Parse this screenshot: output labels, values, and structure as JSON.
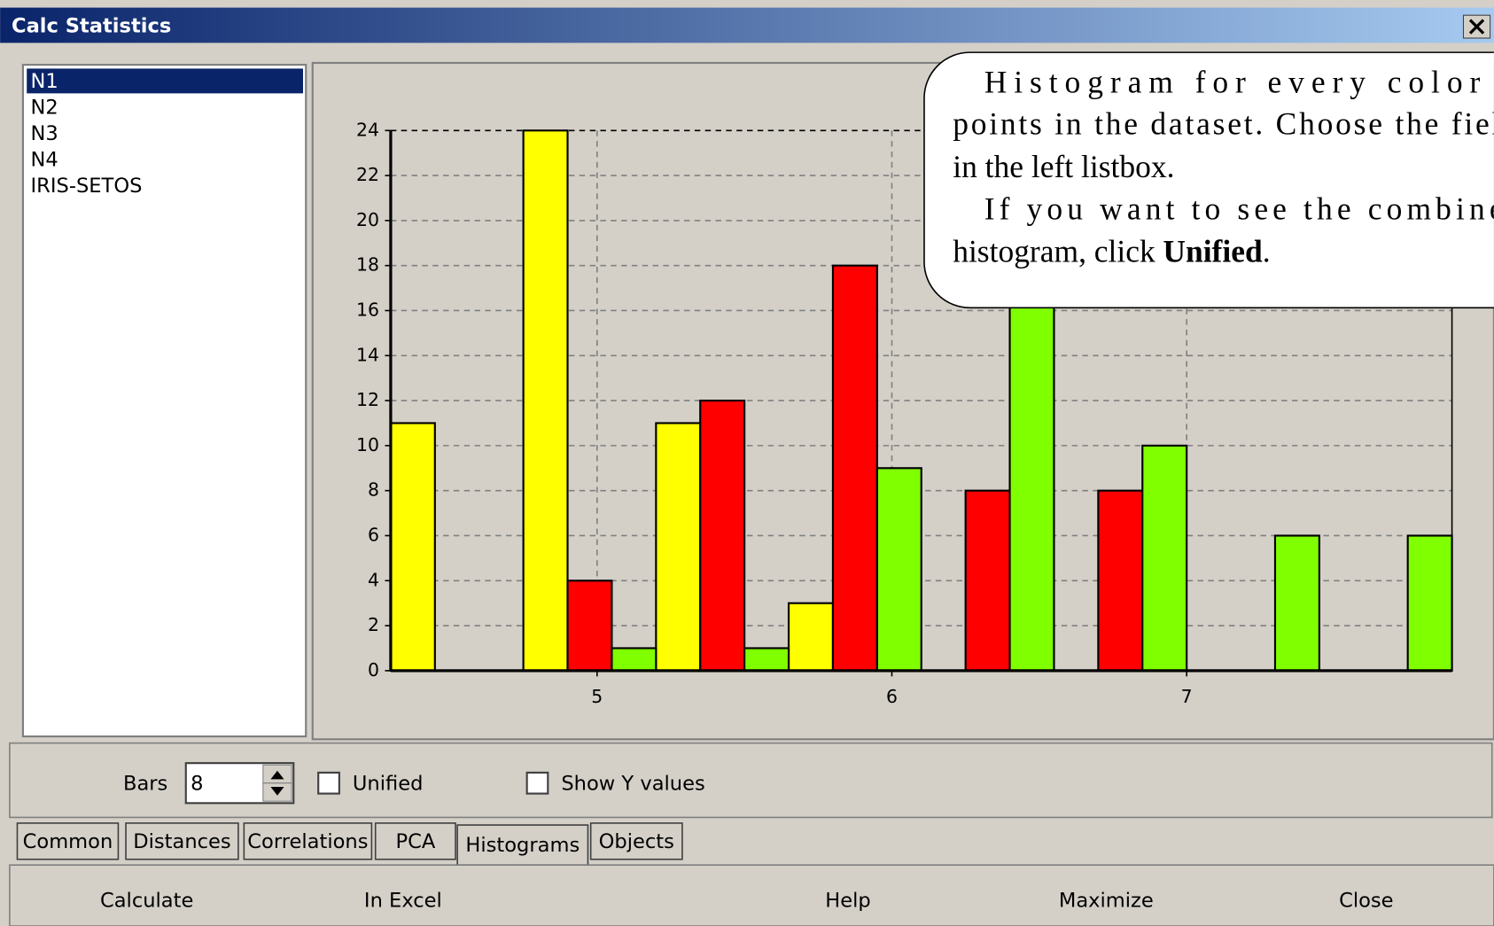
{
  "window": {
    "title": "Calc Statistics"
  },
  "listbox": {
    "items": [
      "N1",
      "N2",
      "N3",
      "N4",
      "IRIS-SETOS"
    ]
  },
  "chart_data": {
    "type": "histogram",
    "bins": [
      4.3,
      4.75,
      5.2,
      5.65,
      6.1,
      6.55,
      7.0,
      7.45,
      7.9
    ],
    "series": [
      {
        "color": "#ffff00",
        "values": [
          11,
          24,
          11,
          3,
          0,
          0,
          0,
          0
        ]
      },
      {
        "color": "#ff0000",
        "values": [
          0,
          4,
          12,
          18,
          8,
          8,
          0,
          0
        ]
      },
      {
        "color": "#80ff00",
        "values": [
          0,
          1,
          1,
          9,
          17,
          10,
          6,
          6
        ]
      }
    ],
    "xlim": [
      4.3,
      7.9
    ],
    "xticks": [
      5,
      6,
      7
    ],
    "ylim": [
      0,
      24
    ],
    "yticks": [
      0,
      2,
      4,
      6,
      8,
      10,
      12,
      14,
      16,
      18,
      20,
      22,
      24
    ],
    "grid": true
  },
  "controls": {
    "bars_label": "Bars",
    "bars_value": "8",
    "unified": "Unified",
    "show_y": "Show Y values"
  },
  "tabs": [
    "Common",
    "Distances",
    "Correlations",
    "PCA",
    "Histograms",
    "Objects"
  ],
  "buttons": [
    "Calculate",
    "In Excel",
    "Help",
    "Maximize",
    "Close"
  ],
  "callout": {
    "lines": [
      "Histogram for every color o",
      "points in the dataset. Choose the fiel",
      "in the left listbox.",
      "If you want to see the combine"
    ],
    "last_line": [
      "histogram, click",
      "Unified",
      "."
    ]
  }
}
